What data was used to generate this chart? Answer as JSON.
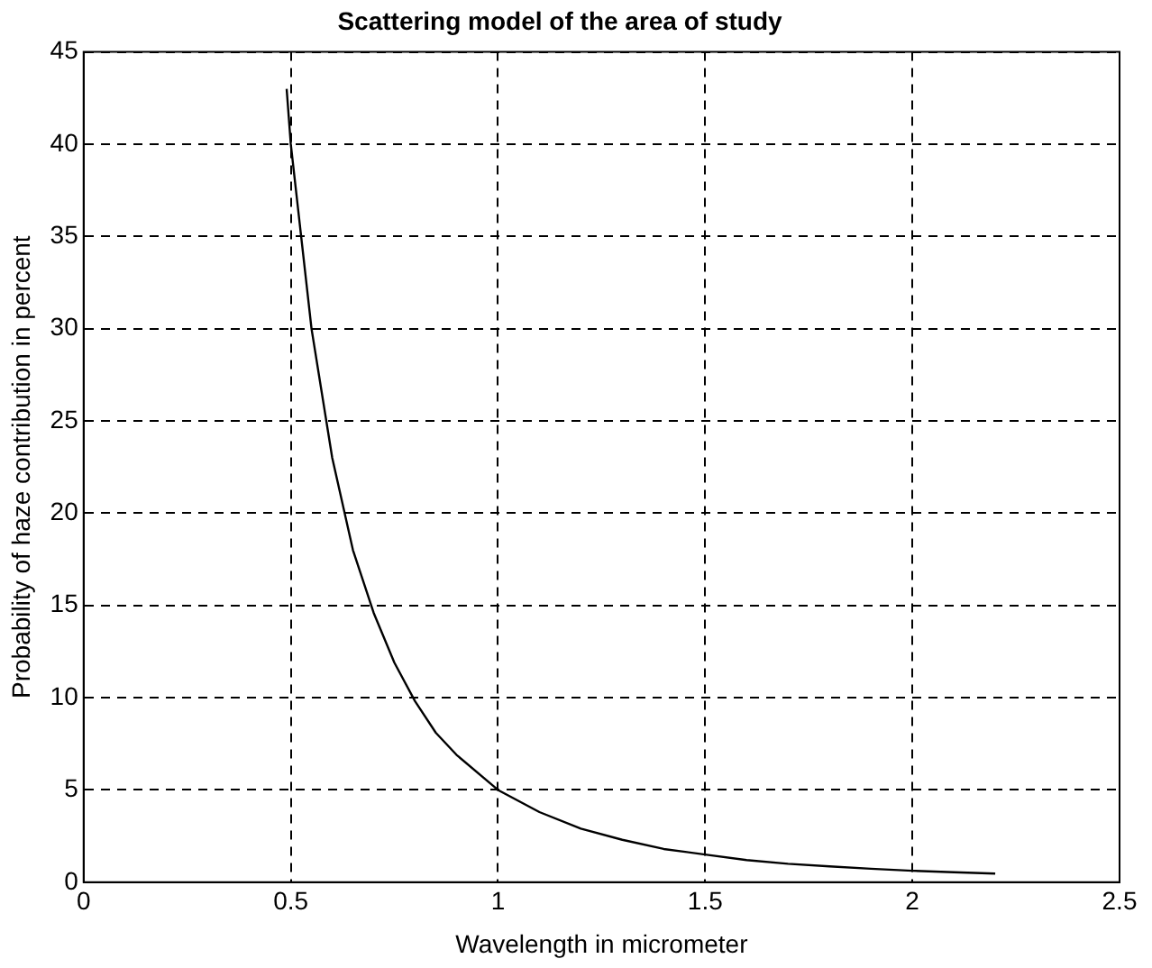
{
  "chart_data": {
    "type": "line",
    "title": "Scattering model of the area of study",
    "xlabel": "Wavelength in micrometer",
    "ylabel": "Probability of haze contribution in percent",
    "x": [
      0.49,
      0.5,
      0.55,
      0.6,
      0.65,
      0.7,
      0.75,
      0.8,
      0.85,
      0.9,
      1.0,
      1.1,
      1.2,
      1.3,
      1.4,
      1.5,
      1.6,
      1.7,
      1.8,
      1.9,
      2.0,
      2.1,
      2.2
    ],
    "series": [
      {
        "color": "#000000",
        "values": [
          43,
          40,
          30,
          23,
          18,
          14.6,
          11.9,
          9.8,
          8.1,
          6.9,
          5,
          3.8,
          2.9,
          2.3,
          1.8,
          1.5,
          1.2,
          1.0,
          0.86,
          0.73,
          0.62,
          0.54,
          0.47
        ]
      }
    ],
    "xlim": [
      0,
      2.5
    ],
    "xticks": [
      0,
      0.5,
      1,
      1.5,
      2,
      2.5
    ],
    "ylim": [
      0,
      45
    ],
    "yticks": [
      0,
      5,
      10,
      15,
      20,
      25,
      30,
      35,
      40,
      45
    ],
    "grid": true,
    "legend": false,
    "marker": "none",
    "line_style": "solid"
  }
}
